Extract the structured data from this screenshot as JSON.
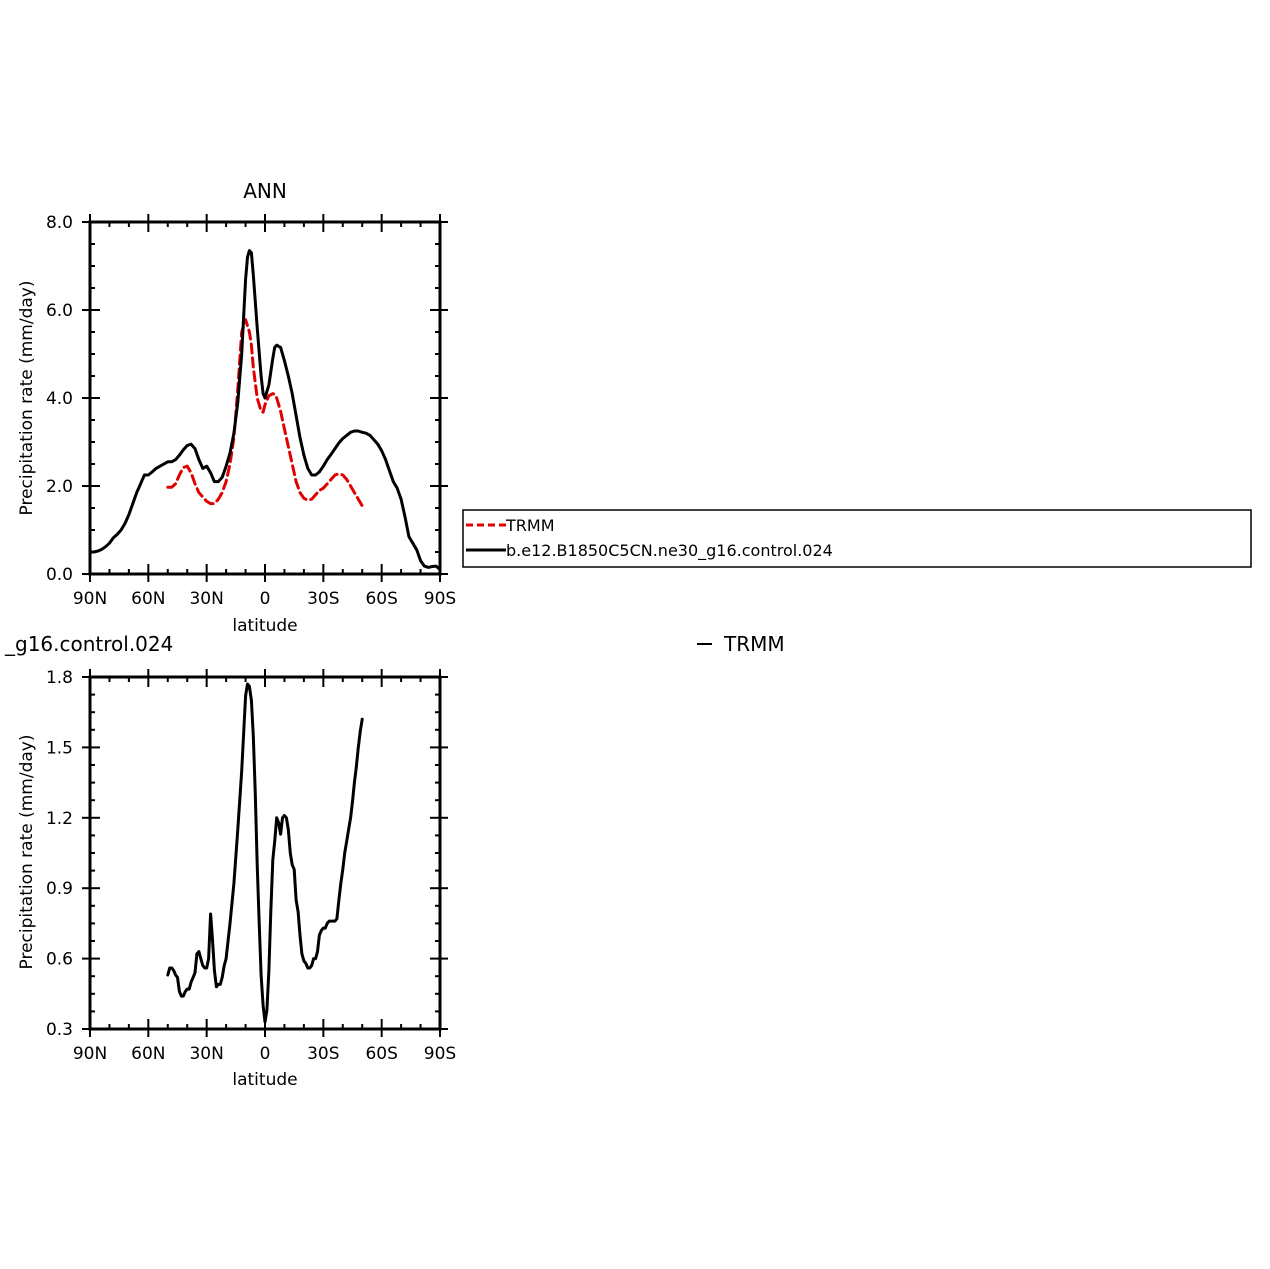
{
  "chart_data": [
    {
      "type": "line",
      "title": "ANN",
      "xlabel": "latitude",
      "ylabel": "Precipitation rate (mm/day)",
      "xlim": [
        90,
        -90
      ],
      "ylim": [
        0,
        8
      ],
      "x_ticks": [
        {
          "value": 90,
          "label": "90N"
        },
        {
          "value": 60,
          "label": "60N"
        },
        {
          "value": 30,
          "label": "30N"
        },
        {
          "value": 0,
          "label": "0"
        },
        {
          "value": -30,
          "label": "30S"
        },
        {
          "value": -60,
          "label": "60S"
        },
        {
          "value": -90,
          "label": "90S"
        }
      ],
      "y_ticks": [
        {
          "value": 0,
          "label": "0.0"
        },
        {
          "value": 2,
          "label": "2.0"
        },
        {
          "value": 4,
          "label": "4.0"
        },
        {
          "value": 6,
          "label": "6.0"
        },
        {
          "value": 8,
          "label": "8.0"
        }
      ],
      "grid": false,
      "legend": {
        "placement": "right",
        "entries": [
          "TRMM",
          "b.e12.B1850C5CN.ne30_g16.control.024"
        ]
      },
      "series": [
        {
          "name": "TRMM",
          "color": "#e00000",
          "style": "dashed",
          "x": [
            50,
            48,
            46,
            44,
            42,
            40,
            38,
            36,
            34,
            32,
            30,
            28,
            26,
            24,
            22,
            20,
            18,
            16,
            14,
            12,
            10,
            8,
            7,
            6,
            4,
            2,
            1,
            0,
            -2,
            -4,
            -5,
            -6,
            -8,
            -10,
            -12,
            -14,
            -16,
            -18,
            -20,
            -22,
            -24,
            -26,
            -28,
            -30,
            -32,
            -34,
            -36,
            -38,
            -40,
            -42,
            -44,
            -46,
            -48,
            -50
          ],
          "y": [
            1.97,
            1.97,
            2.05,
            2.25,
            2.42,
            2.45,
            2.3,
            2.05,
            1.85,
            1.75,
            1.65,
            1.6,
            1.6,
            1.7,
            1.85,
            2.1,
            2.5,
            3.1,
            4.2,
            5.5,
            5.78,
            5.5,
            5.2,
            4.7,
            4.0,
            3.7,
            3.68,
            3.85,
            4.05,
            4.1,
            4.08,
            4.0,
            3.7,
            3.3,
            2.9,
            2.5,
            2.1,
            1.85,
            1.72,
            1.68,
            1.7,
            1.8,
            1.9,
            1.95,
            2.05,
            2.15,
            2.25,
            2.28,
            2.25,
            2.15,
            2.0,
            1.85,
            1.7,
            1.55
          ]
        },
        {
          "name": "b.e12.B1850C5CN.ne30_g16.control.024",
          "color": "#000000",
          "style": "solid",
          "x": [
            90,
            88,
            86,
            84,
            82,
            80,
            78,
            76,
            74,
            72,
            70,
            68,
            66,
            64,
            62,
            60,
            58,
            56,
            54,
            52,
            50,
            48,
            46,
            44,
            42,
            40,
            38,
            36,
            34,
            32,
            30,
            28,
            26,
            24,
            22,
            20,
            18,
            16,
            14,
            12,
            10,
            9,
            8,
            7,
            6,
            4,
            2,
            1,
            0,
            -2,
            -4,
            -5,
            -6,
            -8,
            -10,
            -12,
            -14,
            -16,
            -18,
            -20,
            -22,
            -24,
            -26,
            -28,
            -30,
            -32,
            -34,
            -36,
            -38,
            -40,
            -42,
            -44,
            -46,
            -48,
            -50,
            -52,
            -54,
            -56,
            -58,
            -60,
            -62,
            -64,
            -66,
            -68,
            -70,
            -72,
            -74,
            -76,
            -78,
            -80,
            -82,
            -84,
            -86,
            -88,
            -90
          ],
          "y": [
            0.5,
            0.5,
            0.52,
            0.56,
            0.62,
            0.7,
            0.82,
            0.9,
            1.0,
            1.15,
            1.35,
            1.6,
            1.85,
            2.05,
            2.25,
            2.25,
            2.32,
            2.4,
            2.45,
            2.5,
            2.55,
            2.55,
            2.6,
            2.7,
            2.82,
            2.92,
            2.95,
            2.85,
            2.6,
            2.4,
            2.45,
            2.3,
            2.1,
            2.1,
            2.2,
            2.45,
            2.75,
            3.2,
            3.9,
            5.0,
            6.7,
            7.2,
            7.35,
            7.3,
            6.8,
            5.6,
            4.5,
            4.1,
            4.0,
            4.3,
            4.9,
            5.15,
            5.2,
            5.15,
            4.85,
            4.5,
            4.1,
            3.6,
            3.1,
            2.7,
            2.4,
            2.25,
            2.25,
            2.32,
            2.45,
            2.6,
            2.72,
            2.85,
            2.98,
            3.08,
            3.15,
            3.22,
            3.25,
            3.25,
            3.22,
            3.2,
            3.15,
            3.05,
            2.95,
            2.8,
            2.6,
            2.35,
            2.1,
            1.95,
            1.7,
            1.3,
            0.85,
            0.7,
            0.55,
            0.3,
            0.18,
            0.15,
            0.17,
            0.18,
            0.1
          ]
        }
      ]
    },
    {
      "type": "line",
      "title_left": "_g16.control.024",
      "title_right": "TRMM",
      "xlabel": "latitude",
      "ylabel": "Precipitation rate (mm/day)",
      "xlim": [
        90,
        -90
      ],
      "ylim": [
        0.3,
        1.8
      ],
      "x_ticks": [
        {
          "value": 90,
          "label": "90N"
        },
        {
          "value": 60,
          "label": "60N"
        },
        {
          "value": 30,
          "label": "30N"
        },
        {
          "value": 0,
          "label": "0"
        },
        {
          "value": -30,
          "label": "30S"
        },
        {
          "value": -60,
          "label": "60S"
        },
        {
          "value": -90,
          "label": "90S"
        }
      ],
      "y_ticks": [
        {
          "value": 0.3,
          "label": "0.3"
        },
        {
          "value": 0.6,
          "label": "0.6"
        },
        {
          "value": 0.9,
          "label": "0.9"
        },
        {
          "value": 1.2,
          "label": "1.2"
        },
        {
          "value": 1.5,
          "label": "1.5"
        },
        {
          "value": 1.8,
          "label": "1.8"
        }
      ],
      "grid": false,
      "series": [
        {
          "color": "#000000",
          "style": "solid",
          "x": [
            50,
            49,
            48,
            47,
            46,
            45,
            44,
            43,
            42,
            41,
            40,
            39,
            38,
            37,
            36,
            35,
            34,
            33,
            32,
            31,
            30,
            29,
            28,
            27,
            26,
            25,
            24,
            23,
            22,
            21,
            20,
            18,
            16,
            14,
            12,
            10,
            9,
            8,
            7,
            6,
            5,
            4,
            3,
            2,
            1,
            0,
            -1,
            -2,
            -3,
            -4,
            -5,
            -6,
            -7,
            -8,
            -9,
            -10,
            -11,
            -12,
            -13,
            -14,
            -15,
            -16,
            -17,
            -18,
            -19,
            -20,
            -21,
            -22,
            -23,
            -24,
            -25,
            -26,
            -27,
            -28,
            -29,
            -30,
            -31,
            -32,
            -33,
            -34,
            -35,
            -36,
            -37,
            -38,
            -39,
            -40,
            -41,
            -42,
            -43,
            -44,
            -45,
            -46,
            -47,
            -48,
            -49,
            -50
          ],
          "y": [
            0.53,
            0.56,
            0.56,
            0.55,
            0.53,
            0.52,
            0.46,
            0.44,
            0.44,
            0.46,
            0.47,
            0.47,
            0.5,
            0.52,
            0.54,
            0.62,
            0.63,
            0.6,
            0.57,
            0.56,
            0.56,
            0.6,
            0.79,
            0.68,
            0.55,
            0.48,
            0.49,
            0.49,
            0.52,
            0.57,
            0.6,
            0.75,
            0.92,
            1.15,
            1.4,
            1.72,
            1.77,
            1.76,
            1.7,
            1.55,
            1.3,
            1.0,
            0.75,
            0.53,
            0.4,
            0.33,
            0.38,
            0.55,
            0.8,
            1.02,
            1.1,
            1.2,
            1.18,
            1.13,
            1.2,
            1.21,
            1.2,
            1.15,
            1.05,
            1.0,
            0.98,
            0.85,
            0.8,
            0.7,
            0.62,
            0.59,
            0.58,
            0.56,
            0.56,
            0.57,
            0.6,
            0.6,
            0.63,
            0.7,
            0.72,
            0.73,
            0.73,
            0.75,
            0.76,
            0.76,
            0.76,
            0.76,
            0.77,
            0.85,
            0.92,
            0.98,
            1.05,
            1.1,
            1.15,
            1.2,
            1.27,
            1.35,
            1.42,
            1.5,
            1.57,
            1.62
          ]
        }
      ]
    }
  ]
}
